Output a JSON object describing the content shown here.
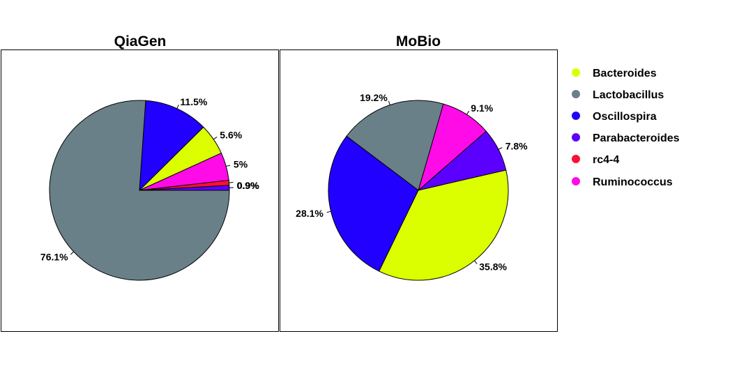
{
  "chart_data": [
    {
      "type": "pie",
      "title": "QiaGen",
      "slices": [
        {
          "label": "Parabacteroides",
          "value": 0.9,
          "text": "0.9%"
        },
        {
          "label": "rc4-4",
          "value": 0.9,
          "text": "0.9%"
        },
        {
          "label": "Ruminococcus",
          "value": 5.0,
          "text": "5%"
        },
        {
          "label": "Bacteroides",
          "value": 5.6,
          "text": "5.6%"
        },
        {
          "label": "Oscillospira",
          "value": 11.5,
          "text": "11.5%"
        },
        {
          "label": "Lactobacillus",
          "value": 76.1,
          "text": "76.1%"
        }
      ]
    },
    {
      "type": "pie",
      "title": "MoBio",
      "slices": [
        {
          "label": "Parabacteroides",
          "value": 7.8,
          "text": "7.8%"
        },
        {
          "label": "Ruminococcus",
          "value": 9.1,
          "text": "9.1%"
        },
        {
          "label": "Lactobacillus",
          "value": 19.2,
          "text": "19.2%"
        },
        {
          "label": "Oscillospira",
          "value": 28.1,
          "text": "28.1%"
        },
        {
          "label": "Bacteroides",
          "value": 35.8,
          "text": "35.8%"
        }
      ]
    }
  ],
  "legend": {
    "placement": "right",
    "items": [
      {
        "label": "Bacteroides",
        "color": "#dcff00"
      },
      {
        "label": "Lactobacillus",
        "color": "#6a8088"
      },
      {
        "label": "Oscillospira",
        "color": "#2100ff"
      },
      {
        "label": "Parabacteroides",
        "color": "#5b00ff"
      },
      {
        "label": "rc4-4",
        "color": "#ff0f37"
      },
      {
        "label": "Ruminococcus",
        "color": "#ff0be8"
      }
    ]
  }
}
